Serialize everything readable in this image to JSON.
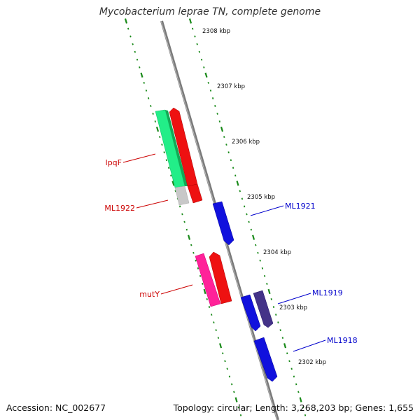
{
  "title": "Mycobacterium leprae TN, complete genome",
  "footer": {
    "accession": "Accession: NC_002677",
    "summary": "Topology: circular; Length: 3,268,203 bp; Genes: 1,655"
  },
  "colors": {
    "backbone": "#808080",
    "tick_dot": "#1a8a1a",
    "kbp_label": "#111111",
    "label_red": "#cc0000",
    "label_blue": "#0000cc"
  },
  "kbp_labels": [
    "2308 kbp",
    "2307 kbp",
    "2306 kbp",
    "2305 kbp",
    "2304 kbp",
    "2303 kbp",
    "2302 kbp"
  ],
  "genes": [
    {
      "name": "lpqF",
      "color": "#cc0000"
    },
    {
      "name": "ML1922",
      "color": "#cc0000"
    },
    {
      "name": "mutY",
      "color": "#cc0000"
    },
    {
      "name": "ML1921",
      "color": "#0000cc"
    },
    {
      "name": "ML1919",
      "color": "#0000cc"
    },
    {
      "name": "ML1918",
      "color": "#0000cc"
    }
  ]
}
